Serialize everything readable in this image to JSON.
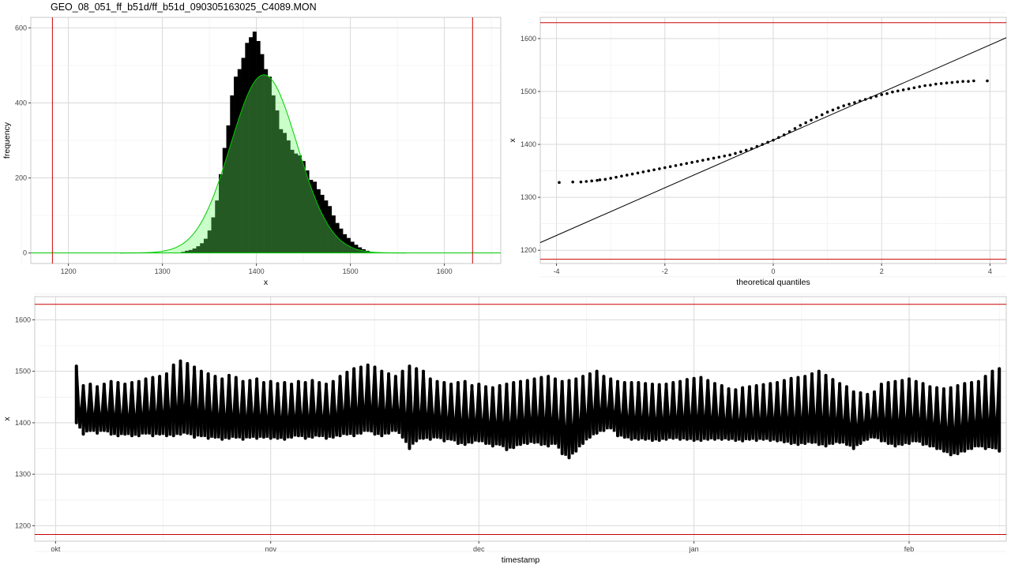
{
  "page_title": "GEO_08_051_ff_b51d/ff_b51d_090305163025_C4089.MON",
  "colors": {
    "limit_line": "#cc0000",
    "density_line": "#00cc00",
    "density_fill": "#66ff66",
    "bars": "#000000",
    "grid_major": "#d9d9d9",
    "grid_minor": "#ececec"
  },
  "chart_data": [
    {
      "type": "bar",
      "xlabel": "x",
      "ylabel": "frequency",
      "xlim": [
        1160,
        1660
      ],
      "ylim": [
        -28,
        628
      ],
      "x_ticks": [
        1200,
        1300,
        1400,
        1500,
        1600
      ],
      "y_ticks": [
        0,
        200,
        400,
        600
      ],
      "limit_lines_x": [
        1183,
        1630
      ],
      "bin_width": 4,
      "bins_start": 1320,
      "values": [
        3,
        6,
        8,
        12,
        18,
        26,
        38,
        60,
        95,
        140,
        210,
        280,
        340,
        420,
        470,
        490,
        520,
        560,
        575,
        590,
        565,
        530,
        490,
        470,
        420,
        380,
        330,
        320,
        300,
        275,
        265,
        260,
        245,
        220,
        195,
        190,
        170,
        155,
        140,
        125,
        100,
        80,
        65,
        50,
        40,
        30,
        22,
        15,
        10,
        6,
        3
      ],
      "density": {
        "mean": 1408,
        "sd": 35.5,
        "peak": 475,
        "x_range": [
          1255,
          1560
        ]
      }
    },
    {
      "type": "scatter",
      "xlabel": "theoretical quantiles",
      "ylabel": "x",
      "xlim": [
        -4.3,
        4.3
      ],
      "ylim": [
        1175,
        1640
      ],
      "x_ticks": [
        -4,
        -2,
        0,
        2,
        4
      ],
      "y_ticks": [
        1200,
        1300,
        1400,
        1500,
        1600
      ],
      "limit_lines_y": [
        1183,
        1630
      ],
      "reference_line": {
        "intercept": 1408,
        "slope": 45
      },
      "points_x": [
        -3.95,
        -3.7,
        -3.55,
        -3.45,
        -3.35,
        -3.25,
        -3.2,
        -3.1,
        -3.0,
        -2.9,
        -2.8,
        -2.7,
        -2.6,
        -2.5,
        -2.4,
        -2.3,
        -2.2,
        -2.1,
        -2.0,
        -1.9,
        -1.8,
        -1.7,
        -1.6,
        -1.5,
        -1.4,
        -1.3,
        -1.2,
        -1.1,
        -1.0,
        -0.9,
        -0.8,
        -0.7,
        -0.6,
        -0.5,
        -0.4,
        -0.3,
        -0.2,
        -0.1,
        0.0,
        0.1,
        0.2,
        0.3,
        0.4,
        0.5,
        0.6,
        0.7,
        0.8,
        0.9,
        1.0,
        1.1,
        1.2,
        1.3,
        1.4,
        1.5,
        1.6,
        1.7,
        1.8,
        1.9,
        2.0,
        2.1,
        2.2,
        2.3,
        2.4,
        2.5,
        2.6,
        2.7,
        2.8,
        2.9,
        3.0,
        3.1,
        3.2,
        3.3,
        3.4,
        3.5,
        3.6,
        3.7,
        3.95
      ],
      "points_y": [
        1328,
        1329,
        1329,
        1330,
        1331,
        1332,
        1333,
        1334,
        1336,
        1338,
        1340,
        1342,
        1344,
        1346,
        1348,
        1350,
        1352,
        1354,
        1356,
        1358,
        1360,
        1362,
        1364,
        1366,
        1368,
        1370,
        1372,
        1374,
        1376,
        1378,
        1380,
        1383,
        1386,
        1389,
        1392,
        1396,
        1400,
        1404,
        1408,
        1413,
        1418,
        1424,
        1430,
        1436,
        1441,
        1446,
        1451,
        1456,
        1461,
        1465,
        1469,
        1473,
        1476,
        1479,
        1482,
        1485,
        1488,
        1491,
        1494,
        1496,
        1499,
        1501,
        1503,
        1505,
        1507,
        1509,
        1511,
        1512,
        1514,
        1515,
        1516,
        1517,
        1518,
        1519,
        1519,
        1520,
        1520
      ]
    },
    {
      "type": "scatter",
      "xlabel": "timestamp",
      "ylabel": "x",
      "ylim": [
        1170,
        1645
      ],
      "y_ticks": [
        1200,
        1300,
        1400,
        1500,
        1600
      ],
      "x_ticks": [
        "okt",
        "nov",
        "dec",
        "jan",
        "feb"
      ],
      "x_tick_days": [
        0,
        31,
        61,
        92,
        123
      ],
      "xlim_days": [
        -3,
        137
      ],
      "limit_lines_y": [
        1183,
        1630
      ],
      "series_days": [
        3,
        4,
        5,
        6,
        7,
        8,
        9,
        10,
        11,
        12,
        13,
        14,
        15,
        16,
        17,
        18,
        19,
        20,
        21,
        22,
        23,
        24,
        25,
        26,
        27,
        28,
        29,
        30,
        31,
        32,
        33,
        34,
        35,
        36,
        37,
        38,
        39,
        40,
        41,
        42,
        43,
        44,
        45,
        46,
        47,
        48,
        49,
        50,
        51,
        52,
        53,
        54,
        55,
        56,
        57,
        58,
        59,
        60,
        61,
        62,
        63,
        64,
        65,
        66,
        67,
        68,
        69,
        70,
        71,
        72,
        73,
        74,
        75,
        76,
        77,
        78,
        79,
        80,
        81,
        82,
        83,
        84,
        85,
        86,
        87,
        88,
        89,
        90,
        91,
        92,
        93,
        94,
        95,
        96,
        97,
        98,
        99,
        100,
        101,
        102,
        103,
        104,
        105,
        106,
        107,
        108,
        109,
        110,
        111,
        112,
        113,
        114,
        115,
        116,
        117,
        118,
        119,
        120,
        121,
        122,
        123,
        124,
        125,
        126,
        127,
        128,
        129,
        130,
        131,
        132,
        133,
        134,
        135,
        136
      ],
      "series_low": [
        1400,
        1378,
        1385,
        1380,
        1385,
        1378,
        1375,
        1378,
        1375,
        1375,
        1380,
        1375,
        1378,
        1375,
        1375,
        1378,
        1380,
        1372,
        1375,
        1370,
        1372,
        1368,
        1370,
        1372,
        1368,
        1372,
        1370,
        1372,
        1370,
        1370,
        1368,
        1372,
        1375,
        1370,
        1372,
        1375,
        1370,
        1372,
        1375,
        1378,
        1375,
        1380,
        1385,
        1378,
        1375,
        1380,
        1385,
        1372,
        1350,
        1365,
        1370,
        1368,
        1372,
        1365,
        1368,
        1360,
        1358,
        1362,
        1365,
        1360,
        1355,
        1358,
        1348,
        1352,
        1358,
        1360,
        1362,
        1358,
        1355,
        1360,
        1340,
        1332,
        1345,
        1360,
        1372,
        1380,
        1385,
        1390,
        1375,
        1372,
        1368,
        1368,
        1368,
        1366,
        1366,
        1368,
        1370,
        1368,
        1368,
        1366,
        1366,
        1368,
        1368,
        1368,
        1368,
        1366,
        1365,
        1368,
        1366,
        1368,
        1366,
        1365,
        1363,
        1360,
        1358,
        1360,
        1362,
        1358,
        1355,
        1360,
        1362,
        1358,
        1350,
        1360,
        1368,
        1372,
        1365,
        1360,
        1355,
        1358,
        1360,
        1365,
        1358,
        1355,
        1350,
        1345,
        1338,
        1340,
        1345,
        1350,
        1355,
        1350,
        1352,
        1345,
        1370
      ],
      "series_high": [
        1510,
        1472,
        1475,
        1470,
        1475,
        1480,
        1478,
        1475,
        1478,
        1480,
        1485,
        1488,
        1490,
        1495,
        1512,
        1520,
        1515,
        1508,
        1500,
        1495,
        1490,
        1485,
        1492,
        1488,
        1480,
        1482,
        1485,
        1478,
        1480,
        1476,
        1478,
        1475,
        1480,
        1478,
        1482,
        1478,
        1475,
        1480,
        1490,
        1498,
        1505,
        1508,
        1512,
        1508,
        1500,
        1495,
        1490,
        1500,
        1510,
        1505,
        1500,
        1485,
        1480,
        1478,
        1475,
        1478,
        1480,
        1472,
        1475,
        1470,
        1468,
        1472,
        1475,
        1478,
        1480,
        1482,
        1485,
        1488,
        1490,
        1485,
        1480,
        1482,
        1485,
        1490,
        1495,
        1500,
        1490,
        1485,
        1480,
        1478,
        1478,
        1478,
        1476,
        1475,
        1474,
        1475,
        1478,
        1480,
        1484,
        1486,
        1488,
        1482,
        1476,
        1472,
        1466,
        1464,
        1468,
        1470,
        1472,
        1474,
        1476,
        1478,
        1482,
        1486,
        1488,
        1490,
        1495,
        1500,
        1492,
        1484,
        1476,
        1470,
        1460,
        1458,
        1455,
        1460,
        1475,
        1478,
        1480,
        1482,
        1485,
        1480,
        1476,
        1470,
        1468,
        1466,
        1468,
        1472,
        1476,
        1478,
        1480,
        1490,
        1500,
        1505,
        1510
      ]
    }
  ]
}
